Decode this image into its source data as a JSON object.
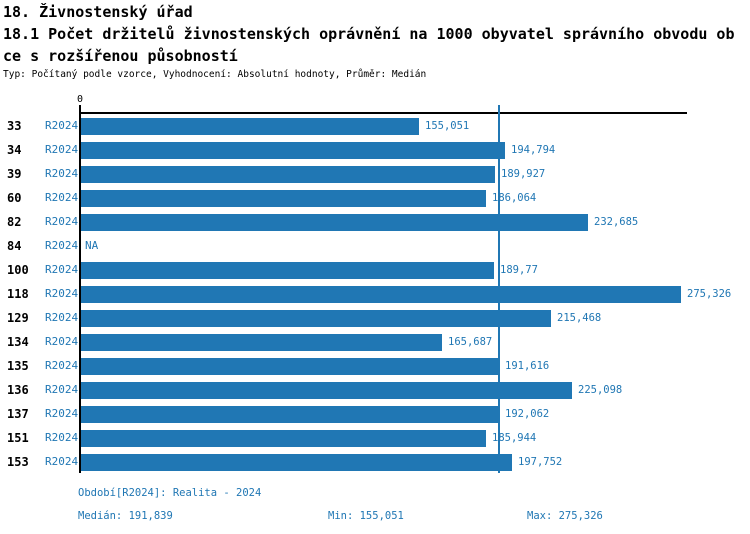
{
  "header": {
    "title": "18. Živnostenský úřad",
    "subtitle_line1": "18.1 Počet držitelů živnostenských oprávnění na 1000 obyvatel správního obvodu ob",
    "subtitle_line2": "ce s rozšířenou působností",
    "meta": "Typ: Počítaný podle vzorce, Vyhodnocení: Absolutní hodnoty, Průměr: Medián"
  },
  "chart_data": {
    "type": "bar",
    "orientation": "horizontal",
    "title": "18.1 Počet držitelů živnostenských oprávnění na 1000 obyvatel správního obvodu obce s rozšířenou působností",
    "categories": [
      "33",
      "34",
      "39",
      "60",
      "82",
      "84",
      "100",
      "118",
      "129",
      "134",
      "135",
      "136",
      "137",
      "151",
      "153"
    ],
    "series": [
      {
        "name": "R2024",
        "values": [
          155.051,
          194.794,
          189.927,
          186.064,
          232.685,
          null,
          189.77,
          275.326,
          215.468,
          165.687,
          191.616,
          225.098,
          192.062,
          185.944,
          197.752
        ],
        "labels": [
          "155,051",
          "194,794",
          "189,927",
          "186,064",
          "232,685",
          "NA",
          "189,77",
          "275,326",
          "215,468",
          "165,687",
          "191,616",
          "225,098",
          "192,062",
          "185,944",
          "197,752"
        ]
      }
    ],
    "median": 191.839,
    "min": 155.051,
    "max": 275.326,
    "xlim": [
      0,
      278
    ],
    "axis_zero_label": "0",
    "grid": false,
    "legend": false,
    "bar_color": "#2077b4",
    "median_line_color": "#2077b4",
    "axis_color": "#000000"
  },
  "footer": {
    "period": "Období[R2024]: Realita - 2024",
    "median": "Medián: 191,839",
    "min": "Min: 155,051",
    "max": "Max: 275,326"
  }
}
